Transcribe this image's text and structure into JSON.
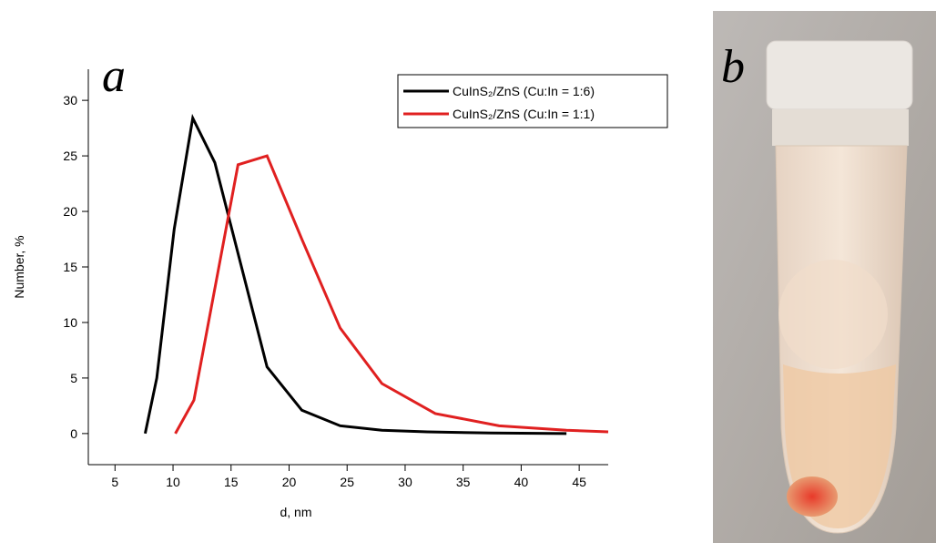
{
  "chart_data": {
    "type": "line",
    "panel_label": "a",
    "photo_label": "b",
    "x_label": "d, nm",
    "y_label": "Number, %",
    "xlim": [
      2.7,
      47.5
    ],
    "ylim": [
      -2.8,
      32.8
    ],
    "xticks": [
      5,
      10,
      15,
      20,
      25,
      30,
      35,
      40,
      45
    ],
    "yticks": [
      0,
      5,
      10,
      15,
      20,
      25,
      30
    ],
    "legend": "upper right",
    "series": [
      {
        "name": "CuInS₂/ZnS (Cu:In = 1:6)",
        "color": "#000000",
        "x": [
          7.6,
          8.6,
          10.1,
          11.7,
          13.6,
          18.1,
          21.1,
          24.4,
          28.0,
          31.9,
          37.4,
          43.9
        ],
        "values": [
          0,
          5.0,
          18.4,
          28.4,
          24.4,
          6.0,
          2.1,
          0.7,
          0.3,
          0.15,
          0.05,
          0
        ]
      },
      {
        "name": "CuInS₂/ZnS (Cu:In = 1:1)",
        "color": "#e02020",
        "x": [
          10.2,
          11.8,
          15.6,
          18.1,
          21.1,
          24.4,
          28.0,
          32.6,
          38.1,
          43.9,
          47.5
        ],
        "values": [
          0,
          3.0,
          24.2,
          25.0,
          17.5,
          9.5,
          4.5,
          1.8,
          0.7,
          0.3,
          0.15
        ]
      }
    ]
  }
}
